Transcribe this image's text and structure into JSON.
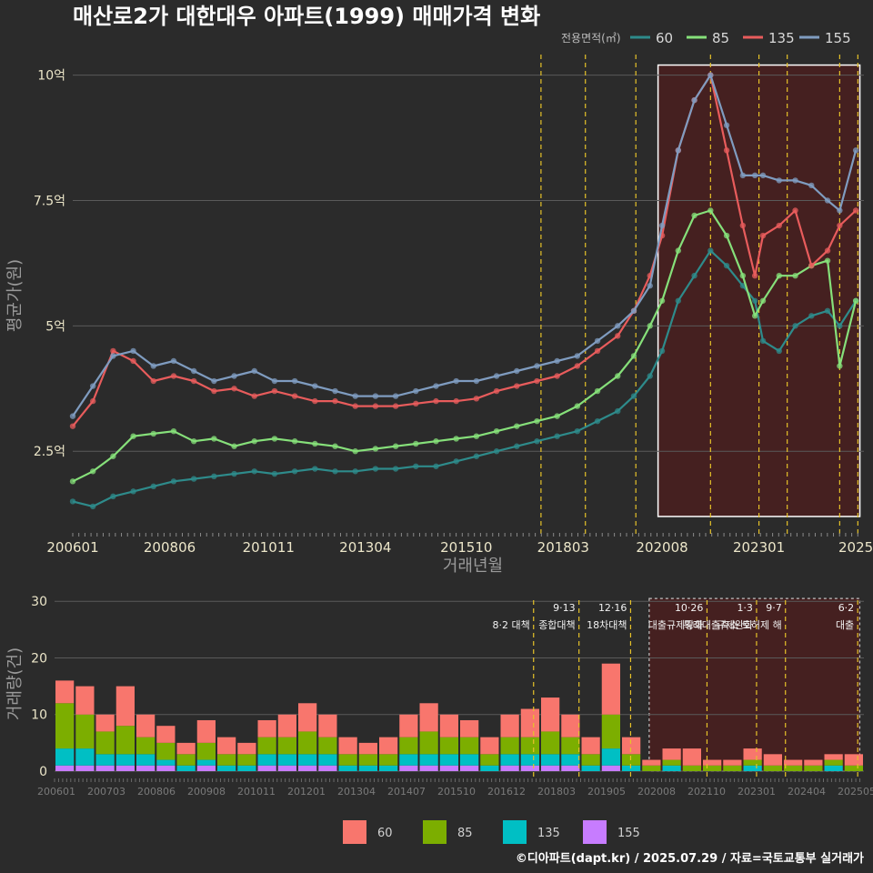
{
  "title": "매산로2가 대한대우 아파트(1999) 매매가격 변화",
  "credit": "©디아파트(dapt.kr) / 2025.07.29 / 자료=국토교통부 실거래가",
  "colors": {
    "background": "#2b2b2b",
    "s60": "#2e8b8b",
    "s85": "#86e07a",
    "s135": "#e85c5c",
    "s155": "#7f9cc0",
    "b60": "#f8766d",
    "b85": "#7cae00",
    "b135": "#00bfc4",
    "b155": "#c77cff",
    "policy": "#e6c229",
    "highlight": "#4a1f1f"
  },
  "chart_data": [
    {
      "type": "line",
      "title": "매산로2가 대한대우 아파트(1999) 매매가격 변화",
      "xlabel": "거래년월",
      "ylabel": "평균가(원)",
      "legend_title": "전용면적(㎡)",
      "legend_position": "top-right",
      "x_ticks": [
        "200601",
        "200806",
        "201011",
        "201304",
        "201510",
        "201803",
        "202008",
        "202301",
        "2025"
      ],
      "y_ticks": [
        "2.5억",
        "5억",
        "7.5억",
        "10억"
      ],
      "y_tick_values": [
        2.5,
        5,
        7.5,
        10
      ],
      "ylim": [
        0.8,
        10.5
      ],
      "xlim": [
        2006.0,
        2025.6
      ],
      "highlight_range": [
        2020.5,
        2025.5
      ],
      "policy_lines": [
        2017.6,
        2018.7,
        2019.95,
        2021.8,
        2023.0,
        2023.7,
        2025.0,
        2025.45
      ],
      "series": [
        {
          "name": "60",
          "color": "#2e8b8b",
          "x": [
            2006.0,
            2006.5,
            2007.0,
            2007.5,
            2008.0,
            2008.5,
            2009.0,
            2009.5,
            2010.0,
            2010.5,
            2011.0,
            2011.5,
            2012.0,
            2012.5,
            2013.0,
            2013.5,
            2014.0,
            2014.5,
            2015.0,
            2015.5,
            2016.0,
            2016.5,
            2017.0,
            2017.5,
            2018.0,
            2018.5,
            2019.0,
            2019.5,
            2019.9,
            2020.3,
            2020.6,
            2021.0,
            2021.4,
            2021.8,
            2022.2,
            2022.6,
            2022.9,
            2023.1,
            2023.5,
            2023.9,
            2024.3,
            2024.7,
            2025.0,
            2025.4
          ],
          "y": [
            1.5,
            1.4,
            1.6,
            1.7,
            1.8,
            1.9,
            1.95,
            2.0,
            2.05,
            2.1,
            2.05,
            2.1,
            2.15,
            2.1,
            2.1,
            2.15,
            2.15,
            2.2,
            2.2,
            2.3,
            2.4,
            2.5,
            2.6,
            2.7,
            2.8,
            2.9,
            3.1,
            3.3,
            3.6,
            4.0,
            4.5,
            5.5,
            6.0,
            6.5,
            6.2,
            5.8,
            5.5,
            4.7,
            4.5,
            5.0,
            5.2,
            5.3,
            5.0,
            5.5
          ]
        },
        {
          "name": "85",
          "color": "#86e07a",
          "x": [
            2006.0,
            2006.5,
            2007.0,
            2007.5,
            2008.0,
            2008.5,
            2009.0,
            2009.5,
            2010.0,
            2010.5,
            2011.0,
            2011.5,
            2012.0,
            2012.5,
            2013.0,
            2013.5,
            2014.0,
            2014.5,
            2015.0,
            2015.5,
            2016.0,
            2016.5,
            2017.0,
            2017.5,
            2018.0,
            2018.5,
            2019.0,
            2019.5,
            2019.9,
            2020.3,
            2020.6,
            2021.0,
            2021.4,
            2021.8,
            2022.2,
            2022.6,
            2022.9,
            2023.1,
            2023.5,
            2023.9,
            2024.3,
            2024.7,
            2025.0,
            2025.4
          ],
          "y": [
            1.9,
            2.1,
            2.4,
            2.8,
            2.85,
            2.9,
            2.7,
            2.75,
            2.6,
            2.7,
            2.75,
            2.7,
            2.65,
            2.6,
            2.5,
            2.55,
            2.6,
            2.65,
            2.7,
            2.75,
            2.8,
            2.9,
            3.0,
            3.1,
            3.2,
            3.4,
            3.7,
            4.0,
            4.4,
            5.0,
            5.5,
            6.5,
            7.2,
            7.3,
            6.8,
            6.0,
            5.2,
            5.5,
            6.0,
            6.0,
            6.2,
            6.3,
            4.2,
            5.5
          ]
        },
        {
          "name": "135",
          "color": "#e85c5c",
          "x": [
            2006.0,
            2006.5,
            2007.0,
            2007.5,
            2008.0,
            2008.5,
            2009.0,
            2009.5,
            2010.0,
            2010.5,
            2011.0,
            2011.5,
            2012.0,
            2012.5,
            2013.0,
            2013.5,
            2014.0,
            2014.5,
            2015.0,
            2015.5,
            2016.0,
            2016.5,
            2017.0,
            2017.5,
            2018.0,
            2018.5,
            2019.0,
            2019.5,
            2019.9,
            2020.3,
            2020.6,
            2021.0,
            2021.4,
            2021.8,
            2022.2,
            2022.6,
            2022.9,
            2023.1,
            2023.5,
            2023.9,
            2024.3,
            2024.7,
            2025.0,
            2025.4
          ],
          "y": [
            3.0,
            3.5,
            4.5,
            4.3,
            3.9,
            4.0,
            3.9,
            3.7,
            3.75,
            3.6,
            3.7,
            3.6,
            3.5,
            3.5,
            3.4,
            3.4,
            3.4,
            3.45,
            3.5,
            3.5,
            3.55,
            3.7,
            3.8,
            3.9,
            4.0,
            4.2,
            4.5,
            4.8,
            5.3,
            6.0,
            6.8,
            8.5,
            9.5,
            10.0,
            8.5,
            7.0,
            6.0,
            6.8,
            7.0,
            7.3,
            6.2,
            6.5,
            7.0,
            7.3
          ]
        },
        {
          "name": "155",
          "color": "#7f9cc0",
          "x": [
            2006.0,
            2006.5,
            2007.0,
            2007.5,
            2008.0,
            2008.5,
            2009.0,
            2009.5,
            2010.0,
            2010.5,
            2011.0,
            2011.5,
            2012.0,
            2012.5,
            2013.0,
            2013.5,
            2014.0,
            2014.5,
            2015.0,
            2015.5,
            2016.0,
            2016.5,
            2017.0,
            2017.5,
            2018.0,
            2018.5,
            2019.0,
            2019.5,
            2019.9,
            2020.3,
            2020.6,
            2021.0,
            2021.4,
            2021.8,
            2022.2,
            2022.6,
            2022.9,
            2023.1,
            2023.5,
            2023.9,
            2024.3,
            2024.7,
            2025.0,
            2025.4
          ],
          "y": [
            3.2,
            3.8,
            4.4,
            4.5,
            4.2,
            4.3,
            4.1,
            3.9,
            4.0,
            4.1,
            3.9,
            3.9,
            3.8,
            3.7,
            3.6,
            3.6,
            3.6,
            3.7,
            3.8,
            3.9,
            3.9,
            4.0,
            4.1,
            4.2,
            4.3,
            4.4,
            4.7,
            5.0,
            5.3,
            5.8,
            7.0,
            8.5,
            9.5,
            10.0,
            9.0,
            8.0,
            8.0,
            8.0,
            7.9,
            7.9,
            7.8,
            7.5,
            7.3,
            8.5
          ]
        }
      ]
    },
    {
      "type": "bar",
      "ylabel": "거래량(건)",
      "x_ticks": [
        "200601",
        "200703",
        "200806",
        "200908",
        "201011",
        "201201",
        "201304",
        "201407",
        "201510",
        "201612",
        "201803",
        "201905",
        "202008",
        "202110",
        "202301",
        "202404",
        "202505"
      ],
      "y_ticks": [
        "0",
        "10",
        "20",
        "30"
      ],
      "y_tick_values": [
        0,
        10,
        20,
        30
      ],
      "ylim": [
        0,
        31
      ],
      "xlim": [
        2006.0,
        2025.6
      ],
      "highlight_range": [
        2020.4,
        2025.5
      ],
      "policy_annotations": [
        {
          "x": 2017.6,
          "date": "",
          "label": "8·2 대책"
        },
        {
          "x": 2018.7,
          "date": "9·13",
          "label": "종합대책"
        },
        {
          "x": 2019.95,
          "date": "12·16",
          "label": "18차대책"
        },
        {
          "x": 2021.8,
          "date": "10·26",
          "label": "대출규제강화"
        },
        {
          "x": 2023.0,
          "date": "1·3",
          "label": "규제완화"
        },
        {
          "x": 2023.7,
          "date": "9·7",
          "label": "특례대출축소 토허제 해"
        },
        {
          "x": 2025.45,
          "date": "6·2",
          "label": "대출"
        }
      ],
      "legend": [
        "60",
        "85",
        "135",
        "155"
      ],
      "series": [
        {
          "name": "60",
          "values": [
            4,
            5,
            3,
            7,
            4,
            3,
            2,
            4,
            3,
            2,
            3,
            4,
            5,
            4,
            3,
            2,
            3,
            4,
            5,
            4,
            3,
            3,
            4,
            5,
            6,
            4,
            3,
            9,
            3,
            1,
            2,
            3,
            1,
            1,
            2,
            2,
            1,
            1,
            1,
            2
          ]
        },
        {
          "name": "85",
          "values": [
            8,
            6,
            4,
            5,
            3,
            3,
            2,
            3,
            2,
            2,
            3,
            3,
            4,
            3,
            2,
            2,
            2,
            3,
            4,
            3,
            3,
            2,
            3,
            3,
            4,
            3,
            2,
            6,
            2,
            1,
            1,
            1,
            1,
            1,
            1,
            1,
            1,
            1,
            1,
            1
          ]
        },
        {
          "name": "135",
          "values": [
            3,
            3,
            2,
            2,
            2,
            1,
            1,
            1,
            1,
            1,
            2,
            2,
            2,
            2,
            1,
            1,
            1,
            2,
            2,
            2,
            2,
            1,
            2,
            2,
            2,
            2,
            1,
            3,
            1,
            0,
            1,
            0,
            0,
            0,
            1,
            0,
            0,
            0,
            1,
            0
          ]
        },
        {
          "name": "155",
          "values": [
            1,
            1,
            1,
            1,
            1,
            1,
            0,
            1,
            0,
            0,
            1,
            1,
            1,
            1,
            0,
            0,
            0,
            1,
            1,
            1,
            1,
            0,
            1,
            1,
            1,
            1,
            0,
            1,
            0,
            0,
            0,
            0,
            0,
            0,
            0,
            0,
            0,
            0,
            0,
            0
          ]
        }
      ]
    }
  ]
}
